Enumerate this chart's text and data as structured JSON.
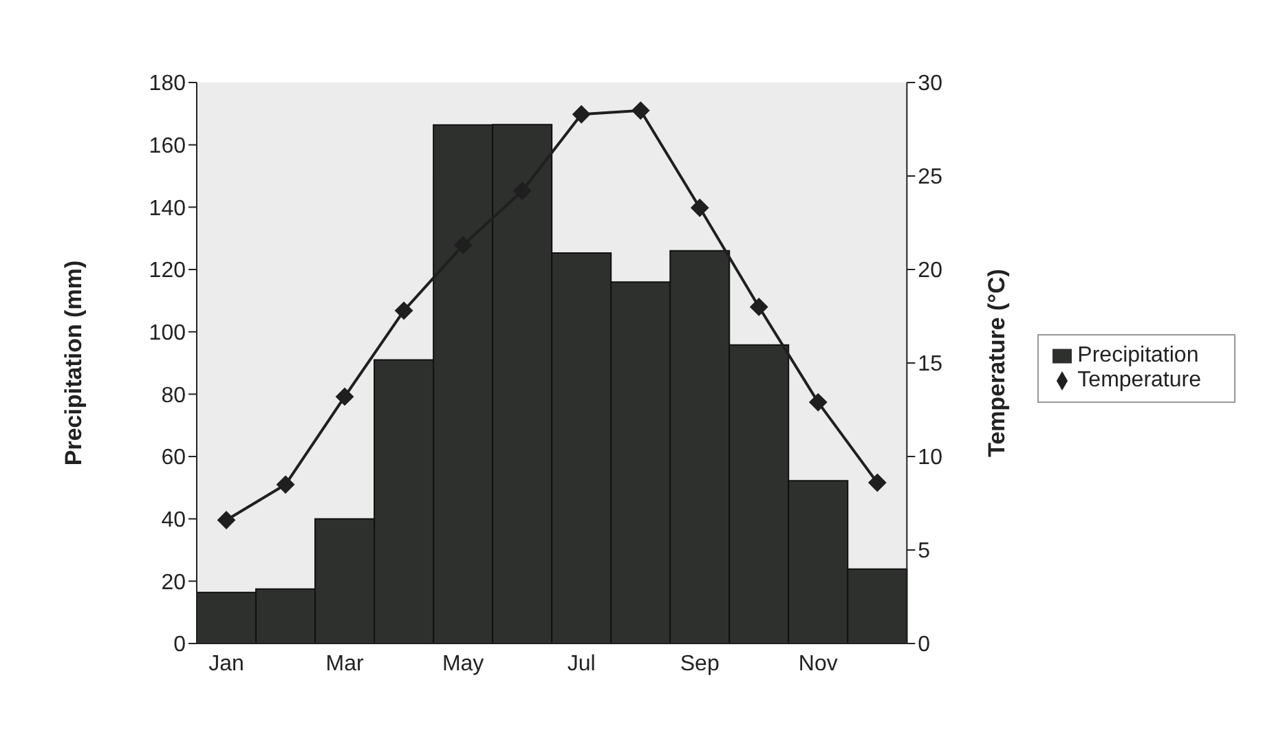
{
  "chart_data": {
    "type": "bar",
    "categories": [
      "Jan",
      null,
      "Mar",
      null,
      "May",
      null,
      "Jul",
      null,
      "Sep",
      null,
      "Nov",
      null
    ],
    "ylabel": "Precipitation (mm)",
    "y2label": "Temperature (°C)",
    "series": [
      {
        "name": "Precipitation",
        "color": "#2e302e",
        "values": [
          16.4,
          17.5,
          40,
          91,
          166.4,
          166.5,
          125.3,
          116,
          126,
          95.8,
          52.2,
          23.9
        ]
      },
      {
        "name": "Temperature",
        "type": "line",
        "axis": "y2",
        "color": "#1f1f1f",
        "marker": "diamond",
        "line_style": "solid",
        "values": [
          6.6,
          8.5,
          13.2,
          17.8,
          21.3,
          24.2,
          28.3,
          28.5,
          23.3,
          18,
          12.9,
          8.6
        ]
      }
    ],
    "ylim": [
      0,
      180
    ],
    "yticks": [
      0,
      20,
      40,
      60,
      80,
      100,
      120,
      140,
      160,
      180
    ],
    "y2lim": [
      0,
      30
    ],
    "y2ticks": [
      0,
      5,
      10,
      15,
      20,
      25,
      30
    ],
    "grid": false,
    "legend": "right"
  }
}
